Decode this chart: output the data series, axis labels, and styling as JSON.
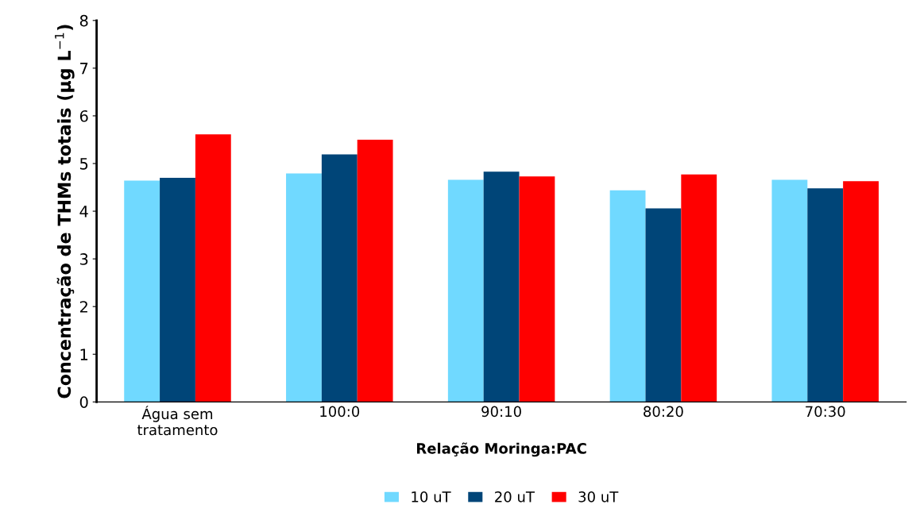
{
  "chart_data": {
    "type": "bar",
    "xlabel": "Relação Moringa:PAC",
    "ylabel": "Concentração de THMs totais (µg L$^{−1}$)",
    "categories": [
      "Água sem\ntratamento",
      "100:0",
      "90:10",
      "80:20",
      "70:30"
    ],
    "series": [
      {
        "name": "10 uT",
        "color": "#70d9ff",
        "values": [
          4.64,
          4.79,
          4.66,
          4.44,
          4.66
        ]
      },
      {
        "name": "20 uT",
        "color": "#004578",
        "values": [
          4.7,
          5.19,
          4.83,
          4.06,
          4.48
        ]
      },
      {
        "name": "30 uT",
        "color": "#ff0000",
        "values": [
          5.61,
          5.5,
          4.73,
          4.77,
          4.63
        ]
      }
    ],
    "ylim": [
      0,
      8
    ],
    "yticks": [
      0,
      1,
      2,
      3,
      4,
      5,
      6,
      7,
      8
    ],
    "grid": false,
    "legend": "bottom"
  }
}
